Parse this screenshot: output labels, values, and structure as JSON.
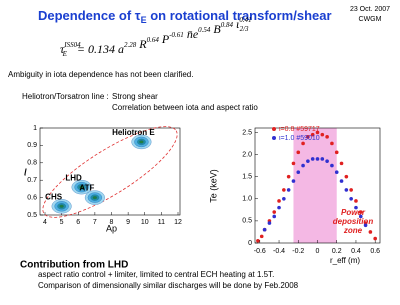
{
  "header": {
    "title_pre": "Dependence of ",
    "title_symbol": "τ",
    "title_sub": "E",
    "title_post": " on rotational transform/shear",
    "date": "23 Oct. 2007",
    "group": "CWGM"
  },
  "formula": {
    "lhs": "τ",
    "lhs_sup": "ISS04",
    "lhs_sub": "E",
    "coefficient": "= 0.134",
    "terms": [
      {
        "base": "a",
        "exp": "2.28"
      },
      {
        "base": "R",
        "exp": "0.64"
      },
      {
        "base": "P",
        "exp": "-0.61"
      },
      {
        "base": "n̄e",
        "exp": "0.54"
      },
      {
        "base": "B",
        "exp": "0.84"
      },
      {
        "base": "ι",
        "exp": "0.41",
        "sub": "2/3"
      }
    ]
  },
  "statement": "Ambiguity in iota dependence has not been clarified.",
  "heliotron": {
    "label": "Heliotron/Torsatron line :",
    "point1": "Strong shear",
    "point2": "Correlation between iota and aspect ratio"
  },
  "chart_data": [
    {
      "type": "scatter",
      "x_label": "Ap",
      "y_label": "ι",
      "xlim": [
        4,
        12
      ],
      "ylim": [
        0.5,
        1
      ],
      "xticks": [
        4,
        5,
        6,
        7,
        8,
        9,
        10,
        11,
        12
      ],
      "yticks": [
        0.5,
        0.6,
        0.7,
        0.8,
        0.9,
        1
      ],
      "devices": [
        {
          "name": "Heliotron E",
          "x": 9.8,
          "y": 0.92
        },
        {
          "name": "LHD",
          "x": 6.2,
          "y": 0.66
        },
        {
          "name": "ATF",
          "x": 7.0,
          "y": 0.6
        },
        {
          "name": "CHS",
          "x": 5.0,
          "y": 0.55
        }
      ]
    },
    {
      "type": "line",
      "x_label": "r_eff (m)",
      "y_label": "Te (keV)",
      "xlim": [
        -0.65,
        0.65
      ],
      "ylim": [
        0,
        2.6
      ],
      "xticks": [
        -0.6,
        -0.4,
        -0.2,
        0,
        0.2,
        0.4,
        0.6
      ],
      "yticks": [
        0,
        0.5,
        {
          "value": 1,
          "label": "1.0"
        },
        1.5,
        {
          "value": 2,
          "label": "2.0"
        },
        2.5
      ],
      "deposition_zone": [
        -0.25,
        0.2
      ],
      "deposition_label": [
        "Power",
        "deposition",
        "zone"
      ],
      "series": [
        {
          "name": "ι=0.8 #59717",
          "color": "#e02020",
          "x": [
            -0.62,
            -0.58,
            -0.55,
            -0.5,
            -0.45,
            -0.4,
            -0.35,
            -0.3,
            -0.25,
            -0.2,
            -0.15,
            -0.1,
            -0.05,
            0,
            0.05,
            0.1,
            0.15,
            0.2,
            0.25,
            0.3,
            0.35,
            0.4,
            0.45,
            0.5,
            0.55,
            0.6
          ],
          "values": [
            0.05,
            0.15,
            0.3,
            0.5,
            0.7,
            0.95,
            1.2,
            1.5,
            1.8,
            2.05,
            2.25,
            2.4,
            2.45,
            2.5,
            2.45,
            2.4,
            2.25,
            2.05,
            1.8,
            1.5,
            1.2,
            0.95,
            0.7,
            0.45,
            0.25,
            0.1
          ]
        },
        {
          "name": "ι=1.0 #59010",
          "color": "#3030d0",
          "x": [
            -0.55,
            -0.5,
            -0.45,
            -0.4,
            -0.35,
            -0.3,
            -0.25,
            -0.2,
            -0.15,
            -0.1,
            -0.05,
            0,
            0.05,
            0.1,
            0.15,
            0.2,
            0.25,
            0.3,
            0.35,
            0.4,
            0.45,
            0.5
          ],
          "values": [
            0.3,
            0.45,
            0.6,
            0.8,
            1.0,
            1.2,
            1.4,
            1.6,
            1.75,
            1.85,
            1.9,
            1.9,
            1.9,
            1.85,
            1.75,
            1.6,
            1.4,
            1.2,
            1.0,
            0.8,
            0.6,
            0.4
          ]
        }
      ]
    }
  ],
  "footer": {
    "heading": "Contribution from LHD",
    "line1": "aspect ratio control + limiter,   limited to central ECH heating at 1.5T.",
    "line2": "Comparison of dimensionally similar discharges will be done by Feb.2008"
  }
}
